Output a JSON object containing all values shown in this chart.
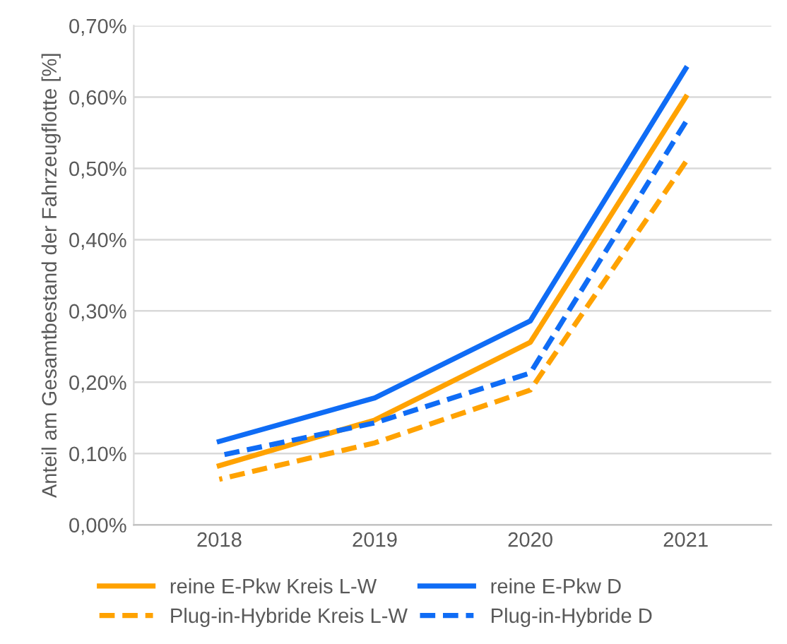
{
  "chart_data": {
    "type": "line",
    "ylabel": "Anteil am Gesamtbestand der Fahrzeugflotte [%]",
    "categories": [
      "2018",
      "2019",
      "2020",
      "2021"
    ],
    "series": [
      {
        "name": "reine E-Pkw Kreis L-W",
        "color": "#ffa200",
        "line_style": "solid",
        "values": [
          0.083,
          0.147,
          0.256,
          0.6
        ]
      },
      {
        "name": "reine E-Pkw D",
        "color": "#0f6cf5",
        "line_style": "solid",
        "values": [
          0.117,
          0.178,
          0.286,
          0.64
        ]
      },
      {
        "name": "Plug-in-Hybride Kreis L-W",
        "color": "#ffa200",
        "line_style": "dashed",
        "values": [
          0.064,
          0.115,
          0.189,
          0.509
        ]
      },
      {
        "name": "Plug-in-Hybride D",
        "color": "#0f6cf5",
        "line_style": "dashed",
        "values": [
          0.097,
          0.143,
          0.213,
          0.565
        ]
      }
    ],
    "ylim": [
      0,
      0.7
    ],
    "yticks": [
      {
        "value": 0,
        "label": "0,00%"
      },
      {
        "value": 0.1,
        "label": "0,10%"
      },
      {
        "value": 0.2,
        "label": "0,20%"
      },
      {
        "value": 0.3,
        "label": "0,30%"
      },
      {
        "value": 0.4,
        "label": "0,40%"
      },
      {
        "value": 0.5,
        "label": "0,50%"
      },
      {
        "value": 0.6,
        "label": "0,60%"
      },
      {
        "value": 0.7,
        "label": "0,70%"
      }
    ],
    "grid": "y",
    "legend": "bottom",
    "marker": "none"
  }
}
